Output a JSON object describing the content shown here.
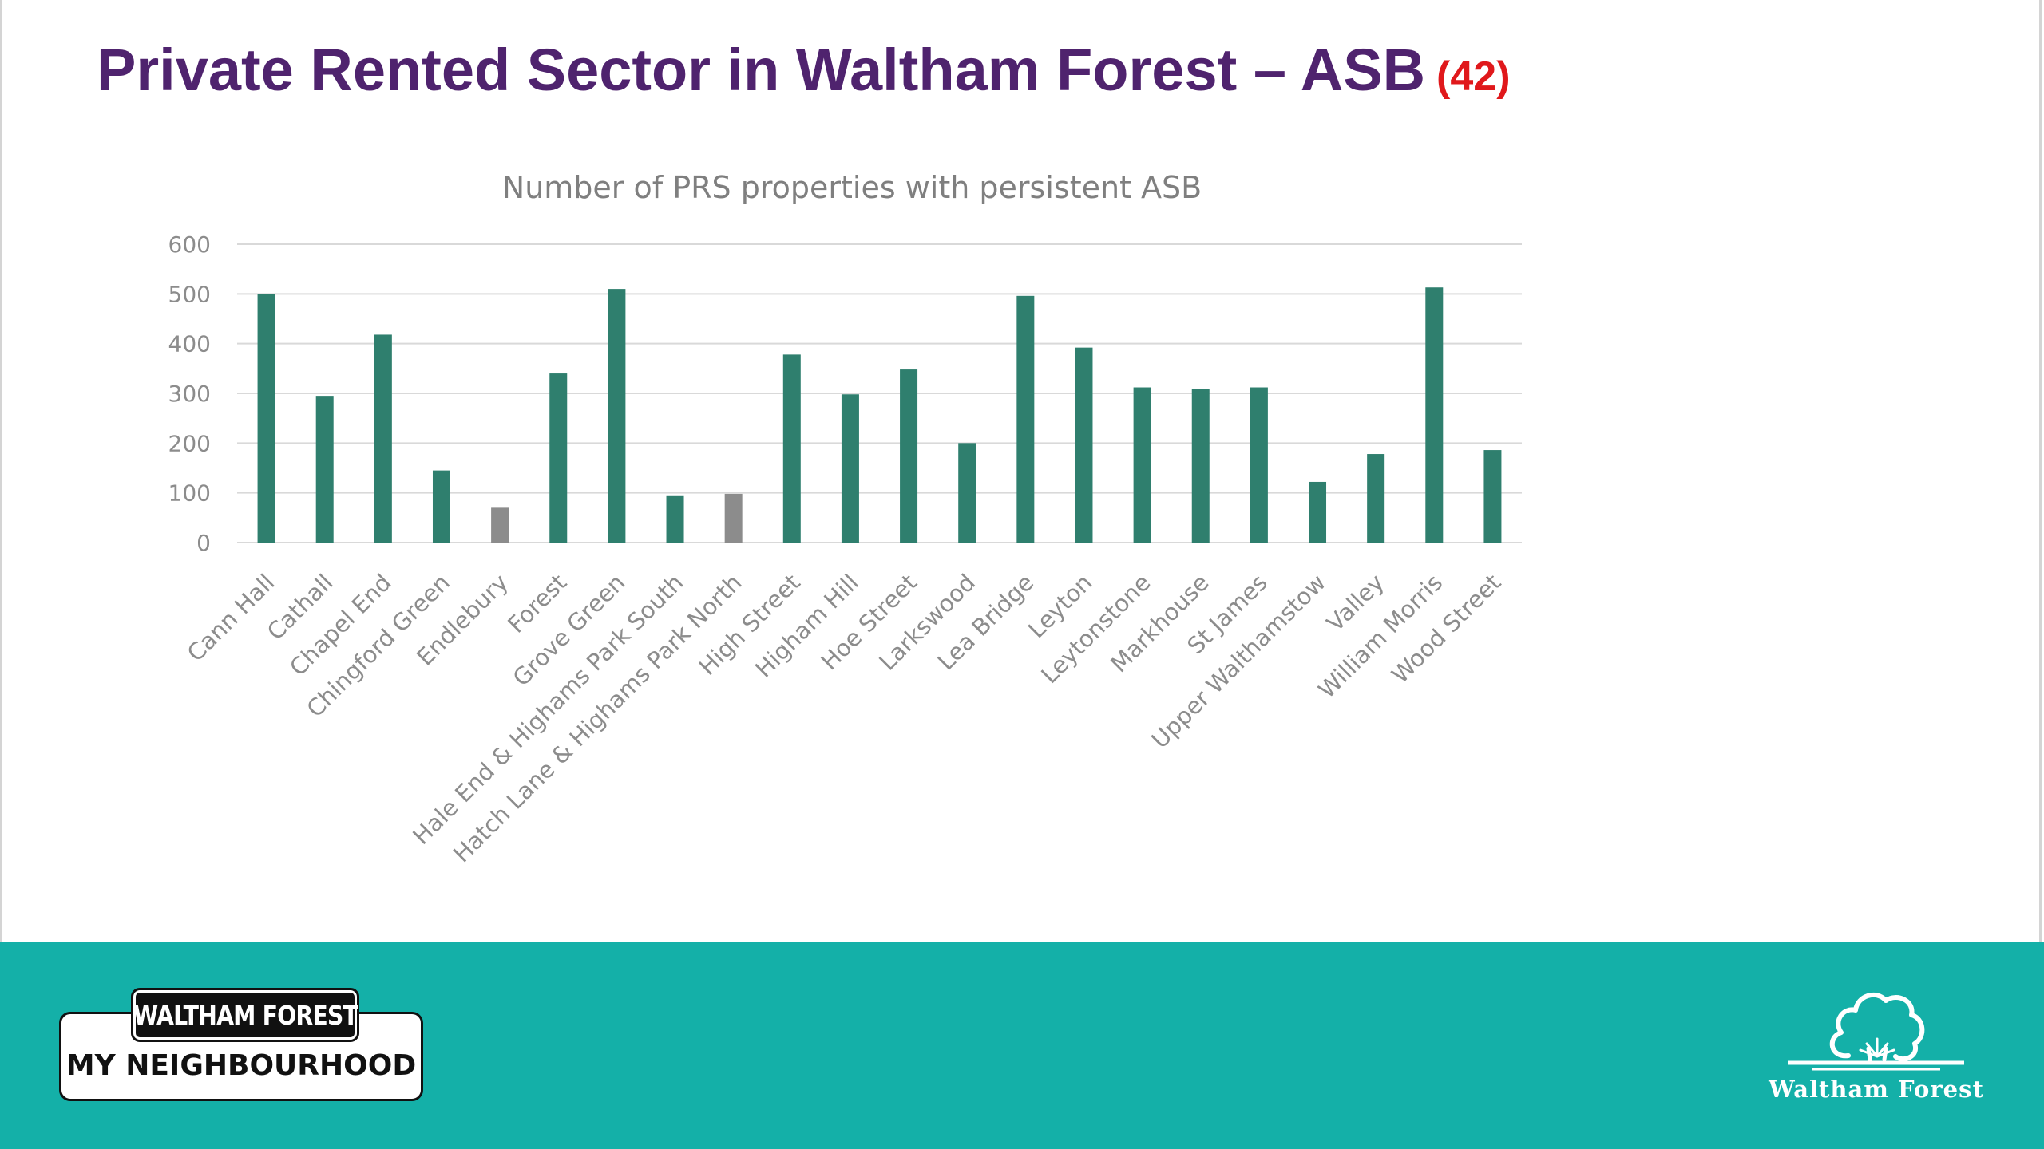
{
  "slide": {
    "title": "Private Rented Sector in Waltham Forest – ASB",
    "slide_number": "(42)"
  },
  "colors": {
    "title": "#4f236e",
    "slide_number": "#e0181b",
    "bar_primary": "#2f7f6e",
    "bar_secondary": "#8c8c8c",
    "band": "#14b0a8"
  },
  "chart_data": {
    "type": "bar",
    "title": "Number of PRS properties with persistent ASB",
    "xlabel": "",
    "ylabel": "",
    "ylim": [
      0,
      600
    ],
    "yticks": [
      0,
      100,
      200,
      300,
      400,
      500,
      600
    ],
    "grid": true,
    "legend": "none",
    "categories": [
      "Cann Hall",
      "Cathall",
      "Chapel End",
      "Chingford Green",
      "Endlebury",
      "Forest",
      "Grove Green",
      "Hale End & Highams Park South",
      "Hatch Lane & Highams Park North",
      "High Street",
      "Higham Hill",
      "Hoe Street",
      "Larkswood",
      "Lea Bridge",
      "Leyton",
      "Leytonstone",
      "Markhouse",
      "St James",
      "Upper Walthamstow",
      "Valley",
      "William Morris",
      "Wood Street"
    ],
    "values": [
      500,
      295,
      418,
      145,
      70,
      340,
      510,
      95,
      98,
      378,
      298,
      348,
      200,
      496,
      392,
      312,
      309,
      312,
      122,
      178,
      513,
      186
    ],
    "bar_colors": [
      "#2f7f6e",
      "#2f7f6e",
      "#2f7f6e",
      "#2f7f6e",
      "#8c8c8c",
      "#2f7f6e",
      "#2f7f6e",
      "#2f7f6e",
      "#8c8c8c",
      "#2f7f6e",
      "#2f7f6e",
      "#2f7f6e",
      "#2f7f6e",
      "#2f7f6e",
      "#2f7f6e",
      "#2f7f6e",
      "#2f7f6e",
      "#2f7f6e",
      "#2f7f6e",
      "#2f7f6e",
      "#2f7f6e",
      "#2f7f6e"
    ]
  },
  "footer": {
    "neighbourhood_logo_top": "WALTHAM FOREST",
    "neighbourhood_logo_bottom": "MY NEIGHBOURHOOD",
    "council_logo_text": "Waltham Forest",
    "council_logo_icon": "tree-icon"
  }
}
